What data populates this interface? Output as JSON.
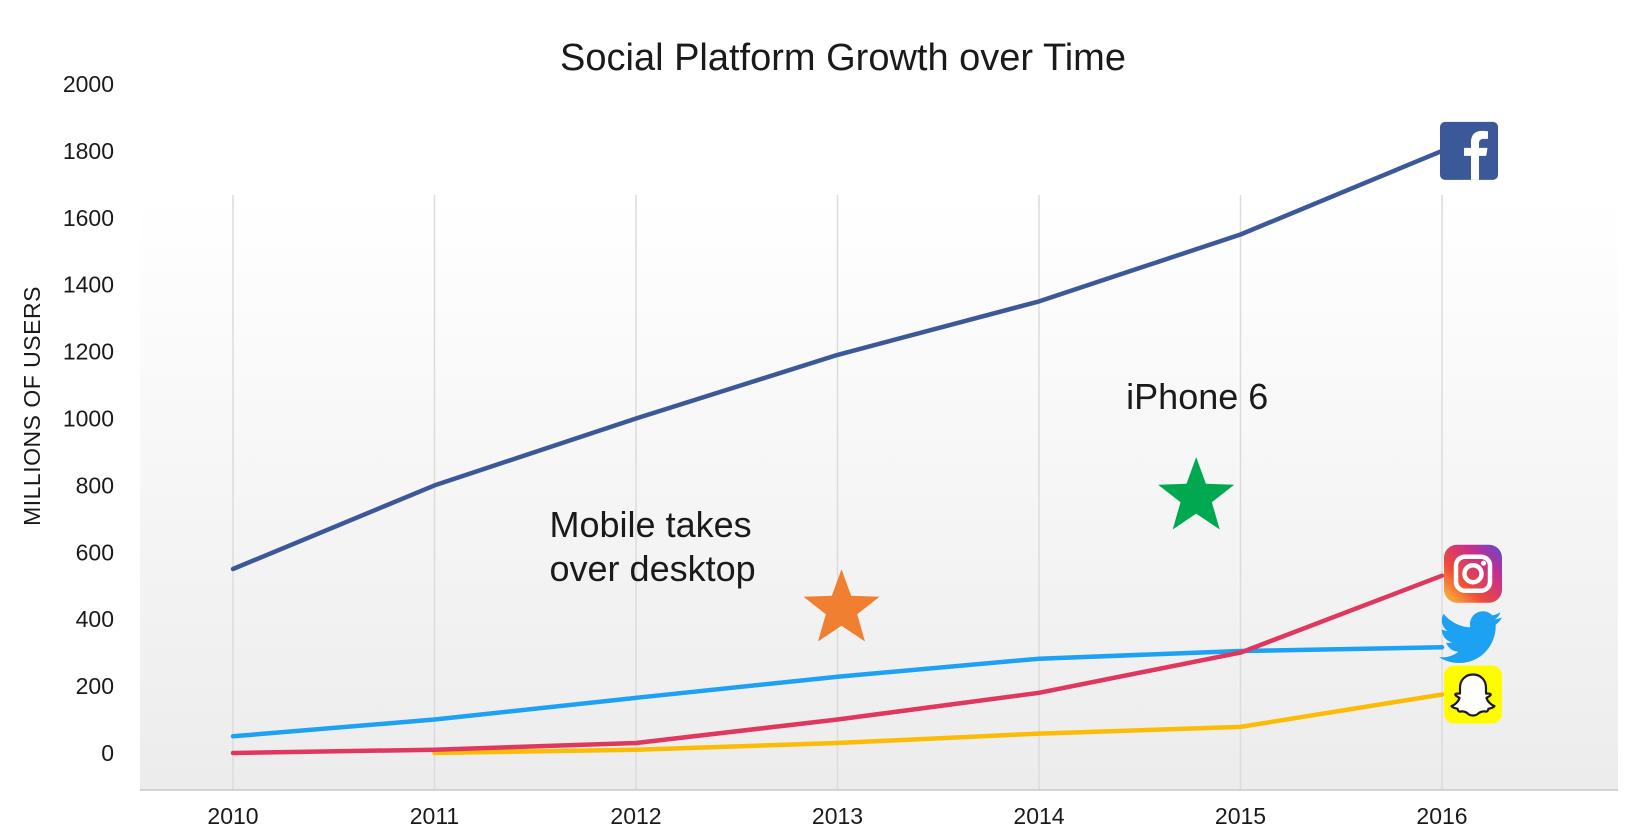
{
  "chart_data": {
    "type": "line",
    "title": "Social Platform Growth over Time",
    "xlabel": "",
    "ylabel": "MILLIONS OF USERS",
    "x": [
      "2010",
      "2011",
      "2012",
      "2013",
      "2014",
      "2015",
      "2016"
    ],
    "ylim": [
      0,
      2000
    ],
    "yticks": [
      0,
      200,
      400,
      600,
      800,
      1000,
      1200,
      1400,
      1600,
      1800,
      2000
    ],
    "grid": "vertical",
    "legend": "platform icons at line ends (right)",
    "series": [
      {
        "platform": "facebook",
        "color": "#3b5998",
        "icon": "facebook-icon",
        "values": [
          550,
          800,
          1000,
          1190,
          1350,
          1550,
          1800
        ]
      },
      {
        "platform": "instagram",
        "color": "#e0375e",
        "icon": "instagram-icon",
        "values": [
          0,
          10,
          30,
          100,
          180,
          300,
          530
        ]
      },
      {
        "platform": "twitter",
        "color": "#1da1f2",
        "icon": "twitter-icon",
        "values": [
          50,
          100,
          165,
          228,
          282,
          305,
          316
        ]
      },
      {
        "platform": "snapchat",
        "color": "#fbbc05",
        "icon": "snapchat-icon",
        "values": [
          null,
          0,
          10,
          30,
          58,
          78,
          175
        ]
      }
    ],
    "annotations": [
      {
        "lines": [
          "Mobile takes",
          "over desktop"
        ],
        "marker": "star",
        "marker_color": "#f07f32",
        "x": 2013.02,
        "y": 430
      },
      {
        "lines": [
          "iPhone 6"
        ],
        "marker": "star",
        "marker_color": "#00a94f",
        "x": 2014.78,
        "y": 765
      }
    ]
  }
}
